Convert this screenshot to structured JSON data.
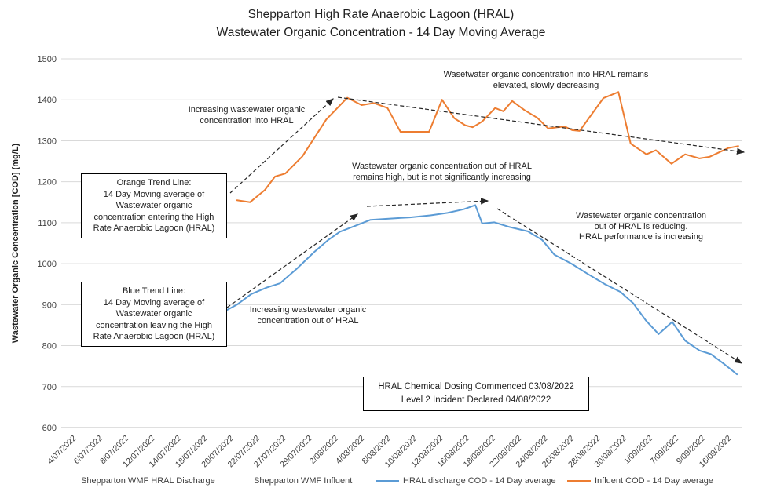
{
  "chart_data": {
    "type": "line",
    "title": "Shepparton High Rate Anaerobic Lagoon (HRAL)\nWastewater Organic Concentration - 14 Day Moving Average",
    "y_axis": {
      "title": "Wastewater Organic Concentration [COD] (mg/L)",
      "min": 600,
      "max": 1500,
      "step": 100,
      "ticks": [
        600,
        700,
        800,
        900,
        1000,
        1100,
        1200,
        1300,
        1400,
        1500
      ]
    },
    "x_labels": [
      "4/07/2022",
      "6/07/2022",
      "8/07/2022",
      "12/07/2022",
      "14/07/2022",
      "18/07/2022",
      "20/07/2022",
      "22/07/2022",
      "27/07/2022",
      "29/07/2022",
      "2/08/2022",
      "4/08/2022",
      "8/08/2022",
      "10/08/2022",
      "12/08/2022",
      "16/08/2022",
      "18/08/2022",
      "22/08/2022",
      "24/08/2022",
      "26/08/2022",
      "28/08/2022",
      "30/08/2022",
      "1/09/2022",
      "7/09/2022",
      "9/09/2022",
      "16/09/2022"
    ],
    "grid": true,
    "legend_position": "bottom",
    "series": [
      {
        "name": "Influent COD - 14 Day average",
        "color": "#ED7D31",
        "points": [
          [
            25.8,
            1155
          ],
          [
            27.7,
            1150
          ],
          [
            29.9,
            1180
          ],
          [
            31.4,
            1213
          ],
          [
            32.9,
            1220
          ],
          [
            35.4,
            1262
          ],
          [
            38.9,
            1352
          ],
          [
            42.0,
            1405
          ],
          [
            44.1,
            1387
          ],
          [
            45.9,
            1392
          ],
          [
            47.9,
            1380
          ],
          [
            49.8,
            1322
          ],
          [
            54.0,
            1322
          ],
          [
            55.9,
            1400
          ],
          [
            57.7,
            1355
          ],
          [
            59.3,
            1338
          ],
          [
            60.4,
            1333
          ],
          [
            61.8,
            1347
          ],
          [
            63.7,
            1380
          ],
          [
            64.9,
            1372
          ],
          [
            66.2,
            1397
          ],
          [
            68.0,
            1375
          ],
          [
            69.9,
            1356
          ],
          [
            71.5,
            1330
          ],
          [
            72.8,
            1333
          ],
          [
            73.9,
            1335
          ],
          [
            75.0,
            1326
          ],
          [
            76.1,
            1324
          ],
          [
            79.6,
            1404
          ],
          [
            81.8,
            1419
          ],
          [
            83.6,
            1293
          ],
          [
            85.9,
            1267
          ],
          [
            87.3,
            1277
          ],
          [
            89.6,
            1244
          ],
          [
            91.6,
            1267
          ],
          [
            93.7,
            1257
          ],
          [
            95.2,
            1261
          ],
          [
            97.9,
            1282
          ],
          [
            99.4,
            1287
          ]
        ]
      },
      {
        "name": "HRAL discharge COD - 14 Day average",
        "color": "#5B9BD5",
        "points": [
          [
            24.1,
            885
          ],
          [
            25.8,
            900
          ],
          [
            27.9,
            926
          ],
          [
            30.2,
            942
          ],
          [
            32.1,
            952
          ],
          [
            34.6,
            988
          ],
          [
            37.1,
            1028
          ],
          [
            39.2,
            1058
          ],
          [
            40.9,
            1078
          ],
          [
            43.1,
            1092
          ],
          [
            45.4,
            1107
          ],
          [
            48.1,
            1110
          ],
          [
            51.2,
            1113
          ],
          [
            54.2,
            1118
          ],
          [
            56.7,
            1124
          ],
          [
            59.1,
            1133
          ],
          [
            60.8,
            1143
          ],
          [
            61.8,
            1098
          ],
          [
            63.6,
            1101
          ],
          [
            65.7,
            1090
          ],
          [
            68.5,
            1079
          ],
          [
            70.6,
            1058
          ],
          [
            72.4,
            1022
          ],
          [
            74.9,
            1000
          ],
          [
            77.3,
            975
          ],
          [
            79.8,
            950
          ],
          [
            82.1,
            931
          ],
          [
            84.0,
            903
          ],
          [
            85.8,
            862
          ],
          [
            87.7,
            828
          ],
          [
            89.7,
            858
          ],
          [
            91.6,
            812
          ],
          [
            93.7,
            788
          ],
          [
            95.4,
            779
          ],
          [
            97.4,
            754
          ],
          [
            99.2,
            730
          ]
        ]
      }
    ],
    "trend_arrows": [
      {
        "from": [
          293,
          246
        ],
        "to": [
          424,
          126
        ]
      },
      {
        "from": [
          430,
          124
        ],
        "to": [
          947,
          194
        ]
      },
      {
        "from": [
          289,
          392
        ],
        "to": [
          455,
          273
        ]
      },
      {
        "from": [
          467,
          263
        ],
        "to": [
          621,
          256
        ]
      },
      {
        "from": [
          633,
          266
        ],
        "to": [
          944,
          463
        ]
      }
    ]
  },
  "annotations": {
    "into_hral_increasing": "Increasing wastewater organic\nconcentration into HRAL",
    "into_hral_elevated": "Wasetwater organic concentration into HRAL remains\nelevated, slowly decreasing",
    "out_hral_high": "Wastewater organic concentration out of HRAL\nremains high, but is not significantly increasing",
    "out_hral_increasing": "Increasing wastewater organic\nconcentration out of HRAL",
    "out_hral_reducing": "Wastewater organic concentration\nout of HRAL is reducing.\nHRAL performance is increasing",
    "orange_trend_box": "Orange Trend Line:\n14 Day Moving average of\nWastewater organic\nconcentration entering the High\nRate Anaerobic Lagoon (HRAL)",
    "blue_trend_box": "Blue Trend Line:\n14 Day Moving average of\nWastewater organic\nconcentration leaving the High\nRate Anaerobic Lagoon (HRAL)",
    "dosing_box": "HRAL Chemical Dosing Commenced 03/08/2022\nLevel 2 Incident Declared 04/08/2022"
  },
  "legend": {
    "items": [
      {
        "label": "Shepparton WMF HRAL Discharge",
        "swatch": null
      },
      {
        "label": "Shepparton WMF Influent",
        "swatch": null
      },
      {
        "label": "HRAL discharge COD - 14 Day average",
        "swatch": "#5B9BD5"
      },
      {
        "label": "Influent COD - 14 Day average",
        "swatch": "#ED7D31"
      }
    ]
  }
}
